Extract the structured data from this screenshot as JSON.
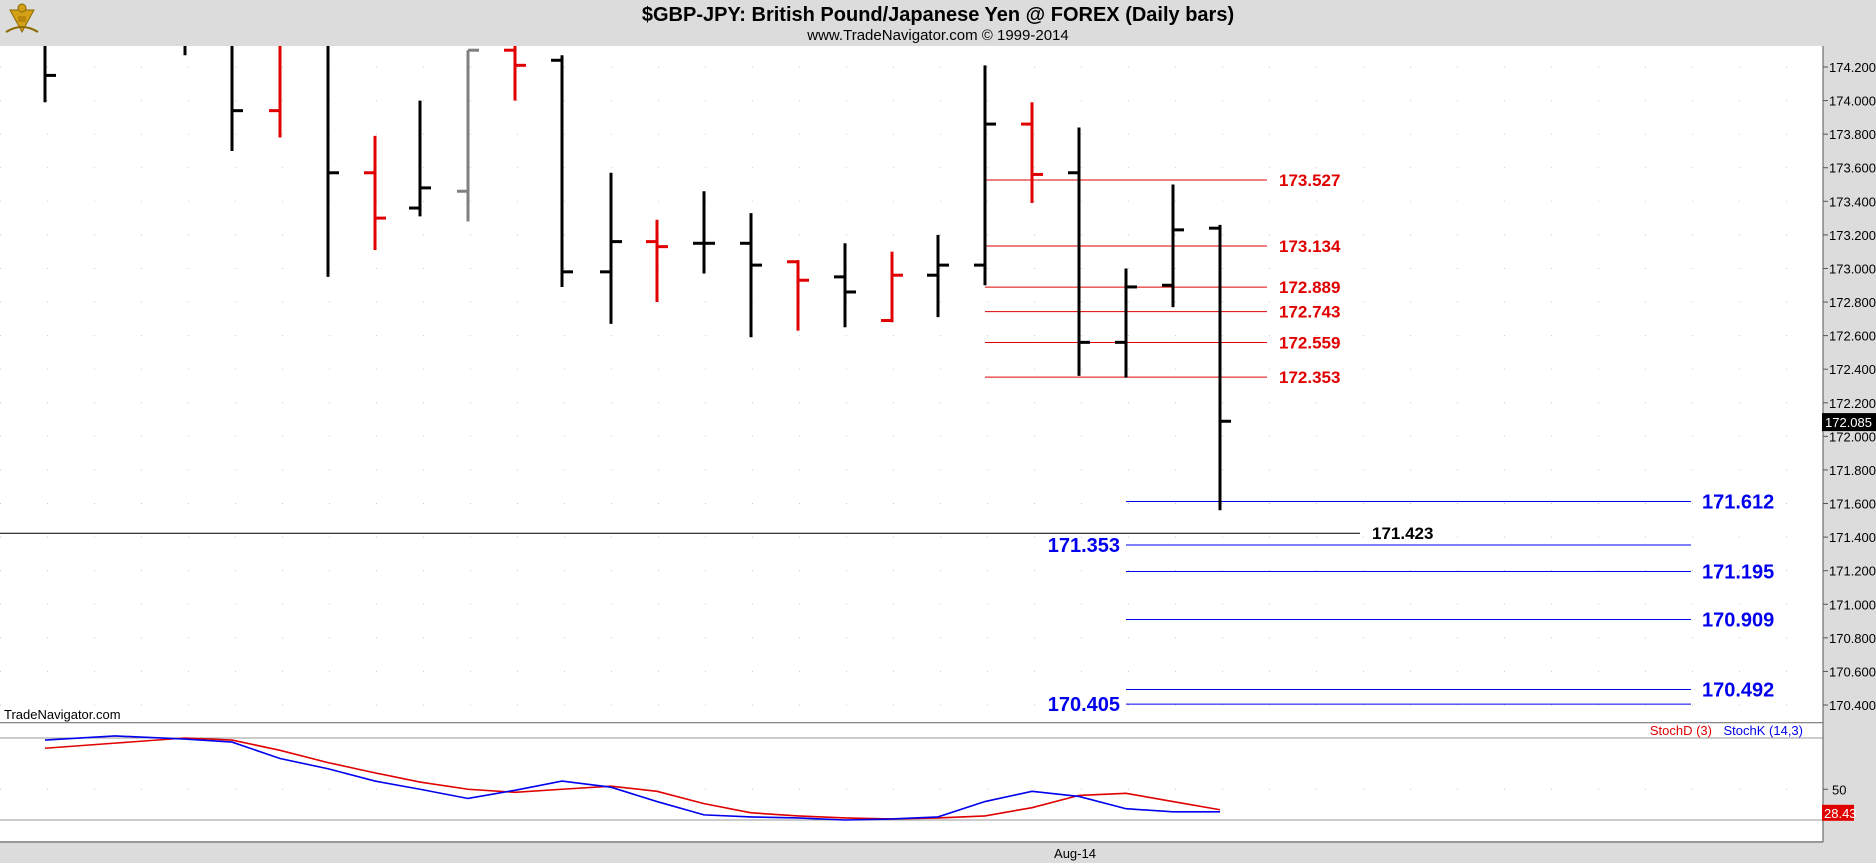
{
  "header": {
    "title": "$GBP-JPY:  British Pound/Japanese Yen @ FOREX  (Daily bars)",
    "subtitle": "www.TradeNavigator.com © 1999-2014",
    "logo_icon": "sextant-logo-icon",
    "watermark": "TradeNavigator.com"
  },
  "chart_data": [
    {
      "type": "ohlc",
      "title": "$GBP-JPY:  British Pound/Japanese Yen @ FOREX  (Daily bars)",
      "y_tick_labels": [
        "174.200",
        "174.000",
        "173.800",
        "173.600",
        "173.400",
        "173.200",
        "173.000",
        "172.800",
        "172.600",
        "172.400",
        "172.200",
        "172.000",
        "171.800",
        "171.600",
        "171.400",
        "171.200",
        "171.000",
        "170.800",
        "170.600",
        "170.400"
      ],
      "ylim": [
        170.3,
        174.3
      ],
      "x_tick_labels": [
        "Aug-14"
      ],
      "last_price": "172.085",
      "colors": {
        "up_bar": "#000000",
        "down_bar": "#e00000",
        "neutral_bar": "#808080",
        "resistance": "#e00000",
        "support": "#0000ee"
      },
      "bars": [
        {
          "h": 174.35,
          "l": 173.99,
          "o": null,
          "c": 174.15,
          "color": "#000000"
        },
        {
          "h": 174.35,
          "l": 174.27,
          "o": null,
          "c": null,
          "color": "#000000"
        },
        {
          "h": 174.35,
          "l": 173.7,
          "o": null,
          "c": 173.94,
          "color": "#000000"
        },
        {
          "h": 174.35,
          "l": 173.78,
          "o": 173.94,
          "c": null,
          "color": "#e00000"
        },
        {
          "h": 174.35,
          "l": 172.95,
          "o": null,
          "c": 173.57,
          "color": "#000000"
        },
        {
          "h": 173.79,
          "l": 173.11,
          "o": 173.57,
          "c": 173.3,
          "color": "#e00000"
        },
        {
          "h": 174.0,
          "l": 173.31,
          "o": 173.36,
          "c": 173.48,
          "color": "#000000"
        },
        {
          "h": 174.3,
          "l": 173.28,
          "o": 173.46,
          "c": 174.3,
          "color": "#808080"
        },
        {
          "h": 174.35,
          "l": 174.0,
          "o": 174.3,
          "c": 174.21,
          "color": "#e00000"
        },
        {
          "h": 174.27,
          "l": 172.89,
          "o": 174.24,
          "c": 172.98,
          "color": "#000000"
        },
        {
          "h": 173.57,
          "l": 172.67,
          "o": 172.98,
          "c": 173.16,
          "color": "#000000"
        },
        {
          "h": 173.29,
          "l": 172.8,
          "o": 173.16,
          "c": 173.13,
          "color": "#e00000"
        },
        {
          "h": 173.46,
          "l": 172.97,
          "o": 173.15,
          "c": 173.15,
          "color": "#000000"
        },
        {
          "h": 173.33,
          "l": 172.59,
          "o": 173.15,
          "c": 173.02,
          "color": "#000000"
        },
        {
          "h": 173.05,
          "l": 172.63,
          "o": 173.04,
          "c": 172.93,
          "color": "#e00000"
        },
        {
          "h": 173.15,
          "l": 172.65,
          "o": 172.95,
          "c": 172.86,
          "color": "#000000"
        },
        {
          "h": 173.1,
          "l": 172.68,
          "o": 172.69,
          "c": 172.96,
          "color": "#e00000"
        },
        {
          "h": 173.2,
          "l": 172.71,
          "o": 172.96,
          "c": 173.02,
          "color": "#000000"
        },
        {
          "h": 174.21,
          "l": 172.9,
          "o": 173.02,
          "c": 173.86,
          "color": "#000000"
        },
        {
          "h": 173.99,
          "l": 173.39,
          "o": 173.86,
          "c": 173.56,
          "color": "#e00000"
        },
        {
          "h": 173.84,
          "l": 172.36,
          "o": 173.57,
          "c": 172.56,
          "color": "#000000"
        },
        {
          "h": 173.0,
          "l": 172.35,
          "o": 172.56,
          "c": 172.89,
          "color": "#000000"
        },
        {
          "h": 173.5,
          "l": 172.77,
          "o": 172.9,
          "c": 173.23,
          "color": "#000000"
        },
        {
          "h": 173.26,
          "l": 171.56,
          "o": 173.24,
          "c": 172.09,
          "color": "#000000"
        }
      ],
      "resistance_levels": [
        "173.527",
        "173.134",
        "172.889",
        "172.743",
        "172.559",
        "172.353"
      ],
      "support_levels_right": [
        "171.612",
        "171.195",
        "170.909",
        "170.492"
      ],
      "support_levels_left": [
        "171.353",
        "170.405"
      ],
      "black_level": "171.423"
    },
    {
      "type": "line",
      "title": "",
      "legend": [
        "StochD (3)",
        "StochK (14,3)"
      ],
      "y_tick_labels": [
        "50"
      ],
      "last_value": "28.43",
      "series": [
        {
          "name": "StochD (3)",
          "color": "#e00000",
          "values": [
            90,
            95,
            100,
            98,
            88,
            76,
            66,
            57,
            50,
            47,
            50,
            53,
            48,
            36,
            27,
            24,
            22,
            21,
            22,
            24,
            32,
            44,
            46,
            38,
            30
          ]
        },
        {
          "name": "StochK (14,3)",
          "color": "#0000ee",
          "values": [
            98,
            102,
            99,
            96,
            80,
            70,
            58,
            50,
            41,
            49,
            58,
            52,
            38,
            25,
            23,
            22,
            20,
            21,
            23,
            38,
            48,
            43,
            31,
            28,
            28
          ]
        }
      ]
    }
  ]
}
